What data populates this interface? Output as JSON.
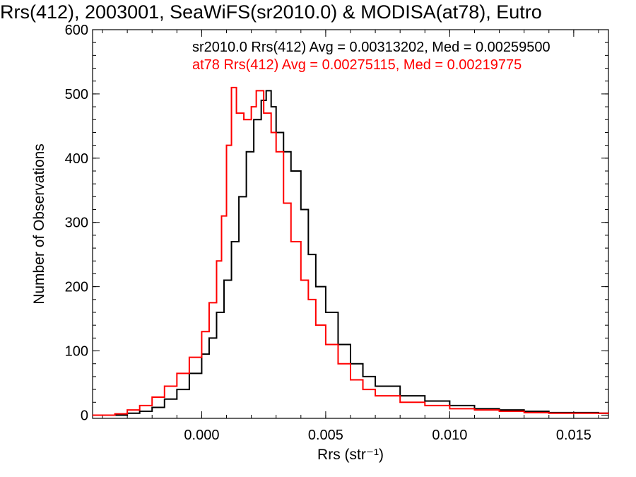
{
  "title": "Rrs(412), 2003001, SeaWiFS(sr2010.0) & MODISA(at78), Eutro",
  "colors": {
    "series1": "#000000",
    "series2": "#ff0000",
    "frame": "#000000"
  },
  "chart_data": {
    "type": "histogram",
    "xlabel": "Rrs (str⁻¹)",
    "ylabel": "Number of Observations",
    "xlim": [
      -0.0044,
      0.0164
    ],
    "ylim": [
      -5,
      600
    ],
    "xticks": [
      {
        "value": 0.0,
        "label": "0.000"
      },
      {
        "value": 0.005,
        "label": "0.005"
      },
      {
        "value": 0.01,
        "label": "0.010"
      },
      {
        "value": 0.015,
        "label": "0.015"
      }
    ],
    "yticks": [
      {
        "value": 0,
        "label": "0"
      },
      {
        "value": 100,
        "label": "100"
      },
      {
        "value": 200,
        "label": "200"
      },
      {
        "value": 300,
        "label": "300"
      },
      {
        "value": 400,
        "label": "400"
      },
      {
        "value": 500,
        "label": "500"
      },
      {
        "value": 600,
        "label": "600"
      }
    ],
    "legend": [
      {
        "text": "sr2010.0 Rrs(412) Avg = 0.00313202, Med = 0.00259500",
        "color": "#000000"
      },
      {
        "text": "at78 Rrs(412) Avg = 0.00275115, Med = 0.00219775",
        "color": "#ff0000"
      }
    ],
    "series": [
      {
        "name": "sr2010.0",
        "color": "#000000",
        "points": [
          [
            -0.0044,
            0
          ],
          [
            -0.0035,
            0
          ],
          [
            -0.003,
            3
          ],
          [
            -0.0025,
            6
          ],
          [
            -0.002,
            12
          ],
          [
            -0.0015,
            25
          ],
          [
            -0.001,
            40
          ],
          [
            -0.0005,
            65
          ],
          [
            0.0,
            95
          ],
          [
            0.0003,
            120
          ],
          [
            0.0006,
            160
          ],
          [
            0.0009,
            210
          ],
          [
            0.0012,
            270
          ],
          [
            0.0015,
            340
          ],
          [
            0.0018,
            410
          ],
          [
            0.0021,
            460
          ],
          [
            0.0024,
            490
          ],
          [
            0.0026,
            505
          ],
          [
            0.0028,
            480
          ],
          [
            0.003,
            440
          ],
          [
            0.0033,
            410
          ],
          [
            0.0036,
            380
          ],
          [
            0.004,
            320
          ],
          [
            0.0043,
            250
          ],
          [
            0.0046,
            200
          ],
          [
            0.005,
            160
          ],
          [
            0.0055,
            110
          ],
          [
            0.006,
            80
          ],
          [
            0.0065,
            60
          ],
          [
            0.007,
            45
          ],
          [
            0.008,
            30
          ],
          [
            0.009,
            22
          ],
          [
            0.01,
            15
          ],
          [
            0.011,
            10
          ],
          [
            0.012,
            8
          ],
          [
            0.013,
            6
          ],
          [
            0.014,
            4
          ],
          [
            0.015,
            4
          ],
          [
            0.016,
            3
          ],
          [
            0.0164,
            3
          ]
        ]
      },
      {
        "name": "at78",
        "color": "#ff0000",
        "points": [
          [
            -0.0044,
            0
          ],
          [
            -0.0035,
            2
          ],
          [
            -0.003,
            8
          ],
          [
            -0.0025,
            15
          ],
          [
            -0.002,
            28
          ],
          [
            -0.0015,
            45
          ],
          [
            -0.001,
            65
          ],
          [
            -0.0005,
            90
          ],
          [
            0.0,
            130
          ],
          [
            0.0003,
            175
          ],
          [
            0.0006,
            240
          ],
          [
            0.0008,
            310
          ],
          [
            0.001,
            420
          ],
          [
            0.0012,
            510
          ],
          [
            0.0014,
            470
          ],
          [
            0.0017,
            460
          ],
          [
            0.002,
            480
          ],
          [
            0.0022,
            505
          ],
          [
            0.0025,
            470
          ],
          [
            0.0028,
            440
          ],
          [
            0.003,
            410
          ],
          [
            0.0033,
            330
          ],
          [
            0.0036,
            270
          ],
          [
            0.004,
            210
          ],
          [
            0.0043,
            180
          ],
          [
            0.0046,
            140
          ],
          [
            0.005,
            110
          ],
          [
            0.0055,
            80
          ],
          [
            0.006,
            55
          ],
          [
            0.0065,
            40
          ],
          [
            0.007,
            30
          ],
          [
            0.008,
            20
          ],
          [
            0.009,
            15
          ],
          [
            0.01,
            10
          ],
          [
            0.011,
            8
          ],
          [
            0.012,
            6
          ],
          [
            0.013,
            4
          ],
          [
            0.014,
            3
          ],
          [
            0.015,
            3
          ],
          [
            0.0164,
            2
          ]
        ]
      }
    ]
  }
}
